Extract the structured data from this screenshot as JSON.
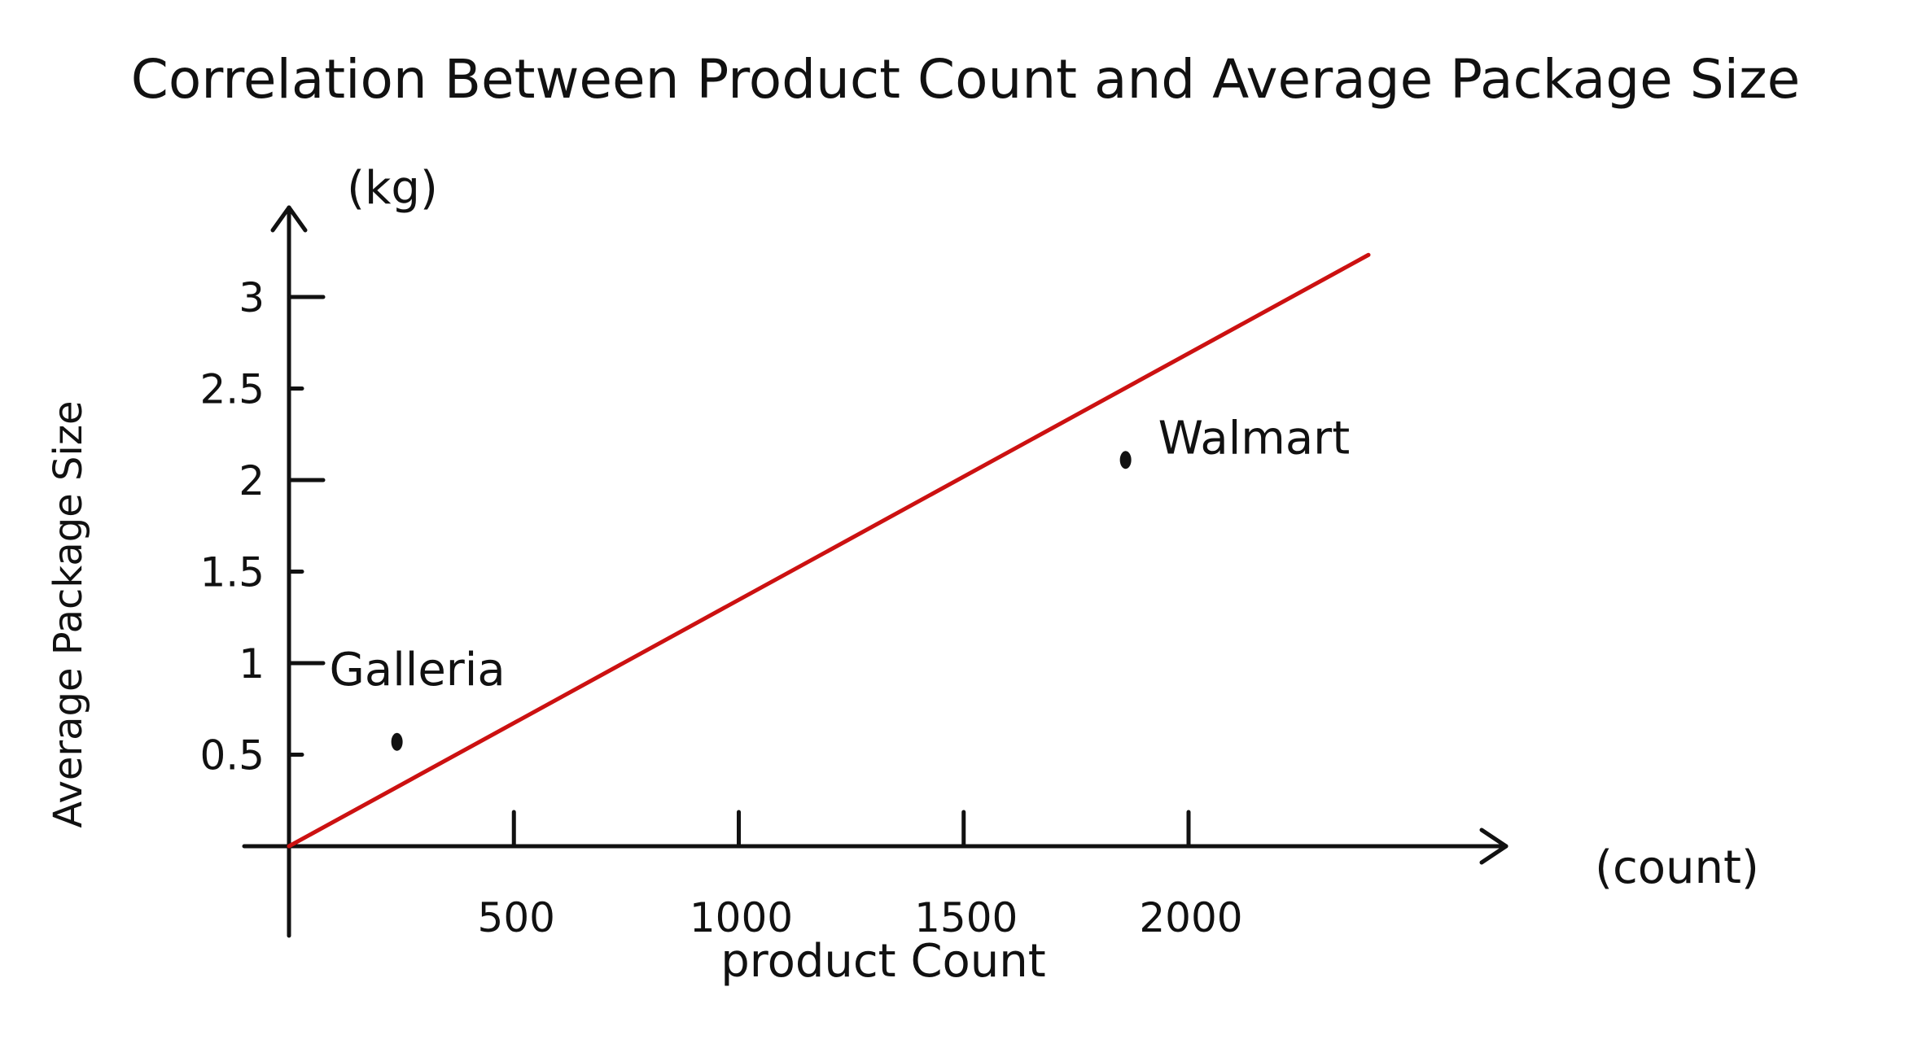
{
  "chart_data": {
    "type": "scatter",
    "title": "Correlation Between Product Count and Average Package Size",
    "xlabel": "product Count",
    "ylabel": "Average Package Size",
    "x_unit": "(count)",
    "y_unit": "(kg)",
    "xlim": [
      0,
      2400
    ],
    "ylim": [
      0,
      3.3
    ],
    "x_ticks": [
      500,
      1000,
      1500,
      2000
    ],
    "x_tick_labels": [
      "500",
      "1000",
      "1500",
      "2000"
    ],
    "y_ticks": [
      0.5,
      1,
      1.5,
      2,
      2.5,
      3
    ],
    "y_tick_labels": [
      "0.5",
      "1",
      "1.5",
      "2",
      "2.5",
      "3"
    ],
    "grid": false,
    "points": [
      {
        "label": "Galleria",
        "x": 240,
        "y": 0.57
      },
      {
        "label": "Walmart",
        "x": 1860,
        "y": 2.11
      }
    ],
    "trend_line": {
      "x": [
        0,
        2400
      ],
      "y": [
        0,
        3.23
      ]
    },
    "colors": {
      "trend_line": "#cc1111",
      "points": "#111111",
      "axes": "#111111"
    }
  }
}
